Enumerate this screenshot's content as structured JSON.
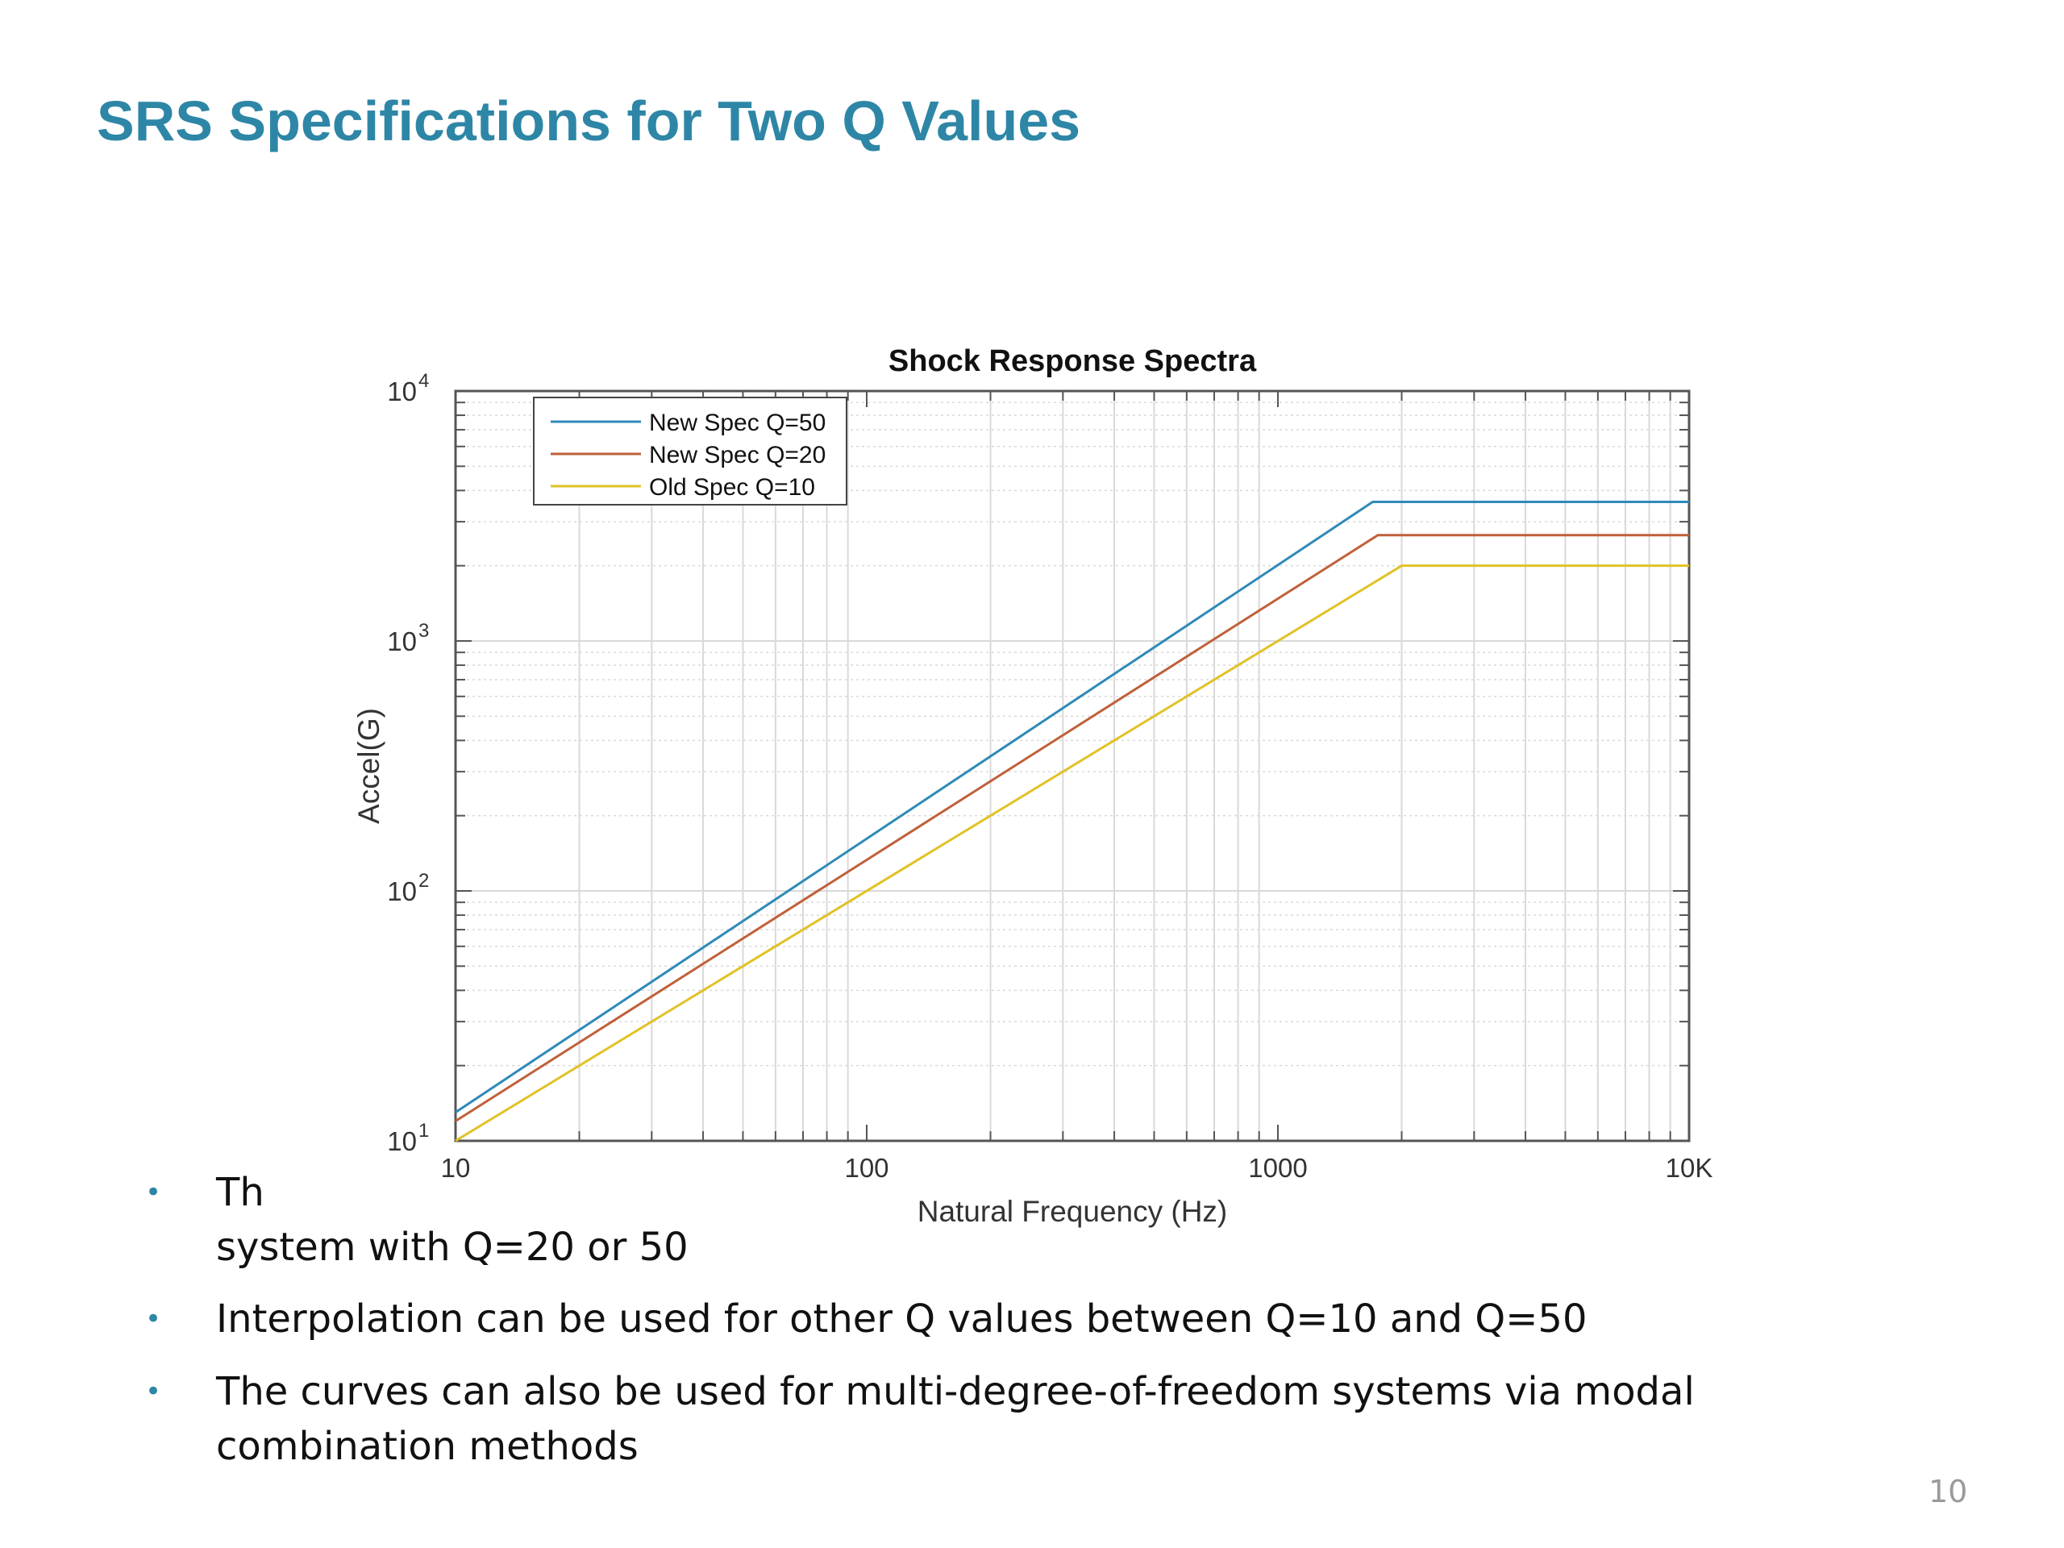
{
  "slide": {
    "title": "SRS Specifications for Two Q Values",
    "page_number": "10"
  },
  "bullets": [
    {
      "text_line1": "Th",
      "text_line2": "system with Q=20 or 50"
    },
    {
      "text": "Interpolation can be used for other Q values between Q=10 and Q=50"
    },
    {
      "text": "The curves can also be used for multi-degree-of-freedom systems via modal combination methods"
    }
  ],
  "colors": {
    "title": "#2e86a6",
    "series_q50": "#2f8ab8",
    "series_q20": "#c0603a",
    "series_q10": "#e1c227",
    "grid": "#d9d9d9",
    "axis": "#555555"
  },
  "chart_data": {
    "type": "line",
    "title": "Shock Response Spectra",
    "xlabel": "Natural Frequency (Hz)",
    "ylabel": "Accel(G)",
    "xscale": "log",
    "yscale": "log",
    "xlim": [
      10,
      10000
    ],
    "ylim": [
      10,
      10000
    ],
    "x_ticks": [
      10,
      100,
      1000,
      10000
    ],
    "x_tick_labels": [
      "10",
      "100",
      "1000",
      "10K"
    ],
    "y_ticks": [
      10,
      100,
      1000,
      10000
    ],
    "y_tick_base": "10",
    "y_tick_exponents": [
      "1",
      "2",
      "3",
      "4"
    ],
    "grid": true,
    "legend_position": "top-left",
    "series": [
      {
        "name": "New Spec Q=50",
        "x": [
          10,
          1700,
          10000
        ],
        "y": [
          13,
          3600,
          3600
        ]
      },
      {
        "name": "New Spec Q=20",
        "x": [
          10,
          1750,
          10000
        ],
        "y": [
          12,
          2650,
          2650
        ]
      },
      {
        "name": "Old Spec Q=10",
        "x": [
          10,
          2000,
          10000
        ],
        "y": [
          10,
          2000,
          2000
        ]
      }
    ]
  }
}
